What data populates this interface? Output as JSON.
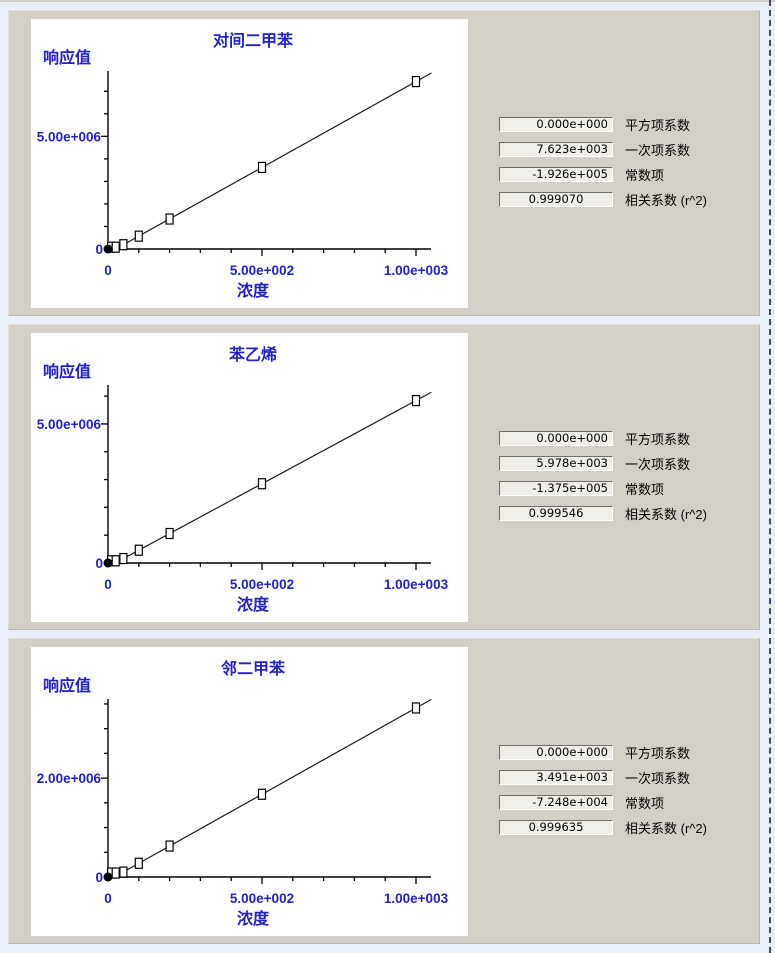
{
  "page": {
    "background": "#eaf0f9",
    "panel_bg": "#d4d0c8",
    "chart_bg": "#ffffff",
    "accent_blue": "#2121cd",
    "box_bg": "#f0eee8",
    "dashed_line_color": "#3b4a7a"
  },
  "coef_labels": [
    "平方项系数",
    "一次项系数",
    "常数项",
    "相关系数 (r^2)"
  ],
  "panels": [
    {
      "coefficients": [
        "0.000e+000",
        "7.623e+003",
        "-1.926e+005",
        "0.999070"
      ]
    },
    {
      "coefficients": [
        "0.000e+000",
        "5.978e+003",
        "-1.375e+005",
        "0.999546"
      ]
    },
    {
      "coefficients": [
        "0.000e+000",
        "3.491e+003",
        "-7.248e+004",
        "0.999635"
      ]
    }
  ],
  "chart_data": [
    {
      "type": "scatter",
      "title": "对间二甲苯",
      "xlabel": "浓度",
      "ylabel": "响应值",
      "x": [
        10,
        25,
        50,
        100,
        200,
        500,
        1000
      ],
      "y": [
        0,
        0,
        190000,
        570000,
        1330000,
        3620000,
        7430000
      ],
      "fit": {
        "quadratic": 0,
        "slope": 7623,
        "intercept": -192600,
        "r2": 0.99907
      },
      "xlim": [
        0,
        1050
      ],
      "ylim": [
        0,
        7900000
      ],
      "x_ticks": [
        {
          "v": 0,
          "label": "0"
        },
        {
          "v": 500,
          "label": "5.00e+002"
        },
        {
          "v": 1000,
          "label": "1.00e+003"
        }
      ],
      "x_minor_step": 100,
      "y_tick": {
        "value": 5000000,
        "label": "5.00e+006"
      },
      "y_zero_label": "0",
      "y_minor_step": 1000000,
      "grid": false,
      "legend": "none"
    },
    {
      "type": "scatter",
      "title": "苯乙烯",
      "xlabel": "浓度",
      "ylabel": "响应值",
      "x": [
        10,
        25,
        50,
        100,
        200,
        500,
        1000
      ],
      "y": [
        0,
        12000,
        160000,
        460000,
        1060000,
        2850000,
        5840000
      ],
      "fit": {
        "quadratic": 0,
        "slope": 5978,
        "intercept": -137500,
        "r2": 0.999546
      },
      "xlim": [
        0,
        1050
      ],
      "ylim": [
        0,
        6400000
      ],
      "x_ticks": [
        {
          "v": 0,
          "label": "0"
        },
        {
          "v": 500,
          "label": "5.00e+002"
        },
        {
          "v": 1000,
          "label": "1.00e+003"
        }
      ],
      "x_minor_step": 100,
      "y_tick": {
        "value": 5000000,
        "label": "5.00e+006"
      },
      "y_zero_label": "0",
      "y_minor_step": 1000000,
      "grid": false,
      "legend": "none"
    },
    {
      "type": "scatter",
      "title": "邻二甲苯",
      "xlabel": "浓度",
      "ylabel": "响应值",
      "x": [
        10,
        25,
        50,
        100,
        200,
        500,
        1000
      ],
      "y": [
        0,
        15000,
        100000,
        277000,
        626000,
        1673000,
        3419000
      ],
      "fit": {
        "quadratic": 0,
        "slope": 3491,
        "intercept": -72480,
        "r2": 0.999635
      },
      "xlim": [
        0,
        1050
      ],
      "ylim": [
        0,
        3600000
      ],
      "x_ticks": [
        {
          "v": 0,
          "label": "0"
        },
        {
          "v": 500,
          "label": "5.00e+002"
        },
        {
          "v": 1000,
          "label": "1.00e+003"
        }
      ],
      "x_minor_step": 100,
      "y_tick": {
        "value": 2000000,
        "label": "2.00e+006"
      },
      "y_zero_label": "0",
      "y_minor_step": 500000,
      "grid": false,
      "legend": "none"
    }
  ]
}
